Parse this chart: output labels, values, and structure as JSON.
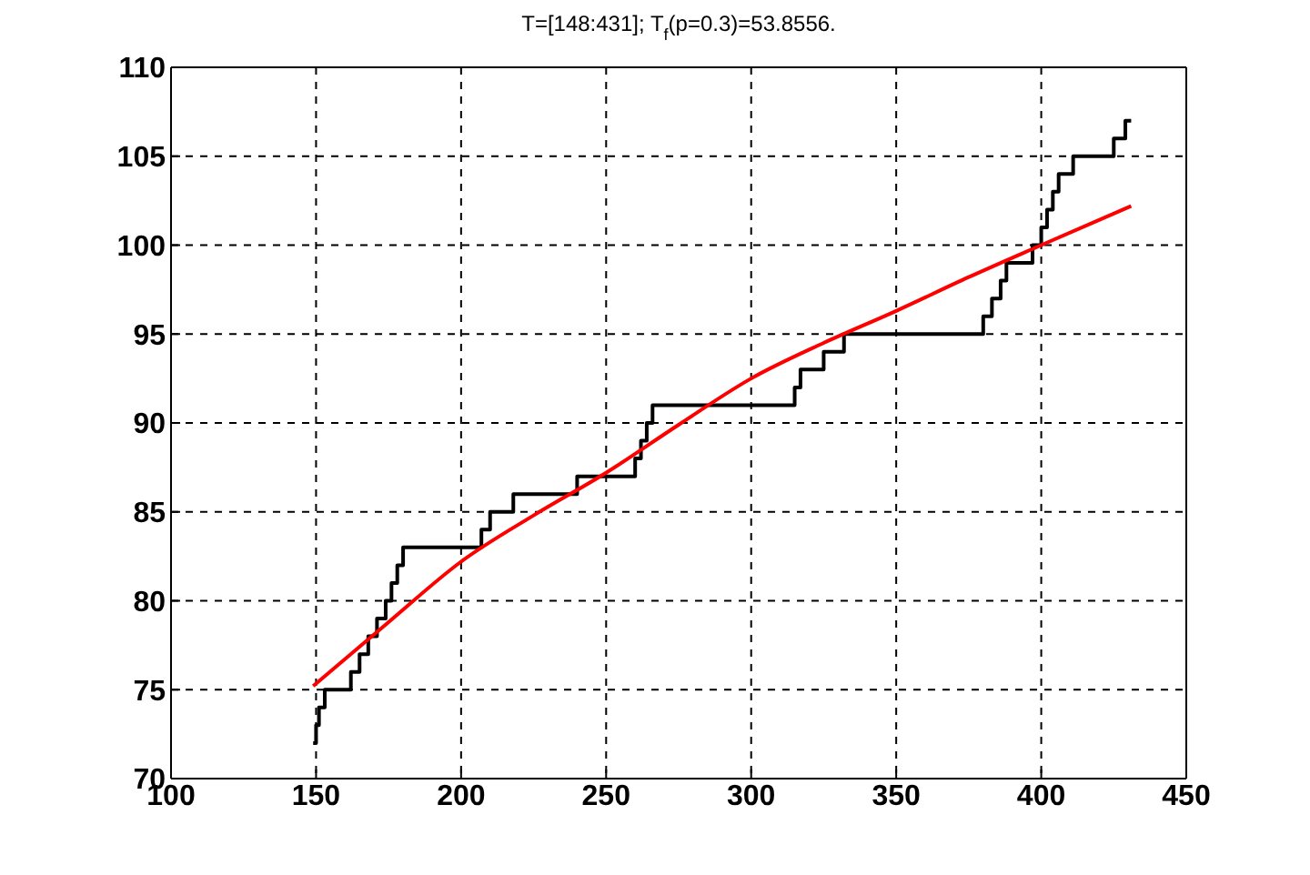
{
  "chart_data": {
    "type": "step",
    "title": "T=[148:431]; T$_{f}$(p=0.3)=53.8556.",
    "xlim": [
      100,
      450
    ],
    "xticks": [
      100,
      150,
      200,
      250,
      300,
      350,
      400,
      450
    ],
    "ylim": [
      70,
      110
    ],
    "yticks": [
      70,
      75,
      80,
      85,
      90,
      95,
      100,
      105,
      110
    ],
    "grid": true,
    "marker": "none",
    "line_style": "solid",
    "series": [
      {
        "type": "step",
        "color": "#000000",
        "x": [
          149,
          150,
          151,
          153,
          162,
          165,
          168,
          171,
          174,
          176,
          178,
          180,
          183,
          190,
          207,
          210,
          218,
          240,
          260,
          262,
          264,
          266,
          315,
          317,
          325,
          327,
          332,
          380,
          383,
          386,
          388,
          390,
          397,
          400,
          402,
          404,
          406,
          408,
          411,
          413,
          425,
          429,
          431
        ],
        "values": [
          72,
          73,
          74,
          75,
          76,
          77,
          78,
          79,
          80,
          81,
          82,
          83,
          83,
          83,
          84,
          85,
          86,
          87,
          88,
          89,
          90,
          91,
          92,
          93,
          94,
          94,
          95,
          96,
          97,
          98,
          99,
          99,
          100,
          101,
          102,
          103,
          104,
          104,
          105,
          105,
          106,
          107,
          107
        ]
      },
      {
        "type": "line",
        "color": "#ff0000",
        "x": [
          149,
          175,
          200,
          225,
          250,
          275,
          300,
          325,
          350,
          375,
          400,
          431
        ],
        "values": [
          75.2,
          78.8,
          82.2,
          84.8,
          87.2,
          89.9,
          92.5,
          94.5,
          96.3,
          98.2,
          100,
          102.2
        ]
      }
    ]
  }
}
